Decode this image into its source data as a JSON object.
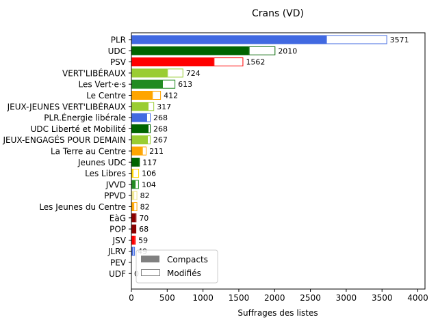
{
  "chart_data": {
    "type": "bar",
    "orientation": "horizontal",
    "stacked": true,
    "title": "Crans (VD)",
    "xlabel": "Suffrages des listes",
    "ylabel": "",
    "xlim": [
      0,
      4100
    ],
    "xticks": [
      "0",
      "500",
      "1000",
      "1500",
      "2000",
      "2500",
      "3000",
      "3500",
      "4000"
    ],
    "grid": false,
    "legend_position": "lower-left",
    "legend": [
      {
        "name": "Compacts",
        "style": "filled",
        "color": "#808080"
      },
      {
        "name": "Modifiés",
        "style": "outline",
        "color": "#808080"
      }
    ],
    "categories": [
      "PLR",
      "UDC",
      "PSV",
      "VERT'LIBÉRAUX",
      "Les Vert·e·s",
      "Le Centre",
      "JEUX-JEUNES VERT'LIBÉRAUX",
      "PLR.Énergie libérale",
      "UDC Liberté et Mobilité",
      "JEUX-ENGAGÉS POUR DEMAIN",
      "La Terre au Centre",
      "Jeunes UDC",
      "Les Libres",
      "JVVD",
      "PPVD",
      "Les Jeunes du Centre",
      "EàG",
      "POP",
      "JSV",
      "JLRV",
      "PEV",
      "UDF"
    ],
    "colors": [
      "#4169e1",
      "#006400",
      "#ff0000",
      "#9acd32",
      "#228b22",
      "#ffa500",
      "#9acd32",
      "#4169e1",
      "#006400",
      "#9acd32",
      "#ffa500",
      "#006400",
      "#ffd700",
      "#228b22",
      "#f0e68c",
      "#ffa500",
      "#8b0000",
      "#8b0000",
      "#ff0000",
      "#4169e1",
      "#ffd700",
      "#4169e1"
    ],
    "totals": [
      3571,
      2010,
      1562,
      724,
      613,
      412,
      317,
      268,
      268,
      267,
      211,
      117,
      106,
      104,
      82,
      82,
      70,
      68,
      59,
      49,
      0,
      0
    ],
    "total_labels": [
      "3571",
      "2010",
      "1562",
      "724",
      "613",
      "412",
      "317",
      "268",
      "268",
      "267",
      "211",
      "117",
      "106",
      "104",
      "82",
      "82",
      "70",
      "68",
      "59",
      "49",
      "",
      "0"
    ],
    "series": [
      {
        "name": "Compacts",
        "values": [
          2720,
          1640,
          1150,
          500,
          430,
          290,
          230,
          210,
          230,
          220,
          150,
          100,
          20,
          50,
          30,
          30,
          50,
          68,
          40,
          20,
          0,
          0
        ]
      },
      {
        "name": "Modifiés",
        "values": [
          851,
          370,
          412,
          224,
          183,
          122,
          87,
          58,
          38,
          47,
          61,
          17,
          86,
          54,
          52,
          52,
          20,
          0,
          19,
          29,
          0,
          0
        ]
      }
    ]
  }
}
